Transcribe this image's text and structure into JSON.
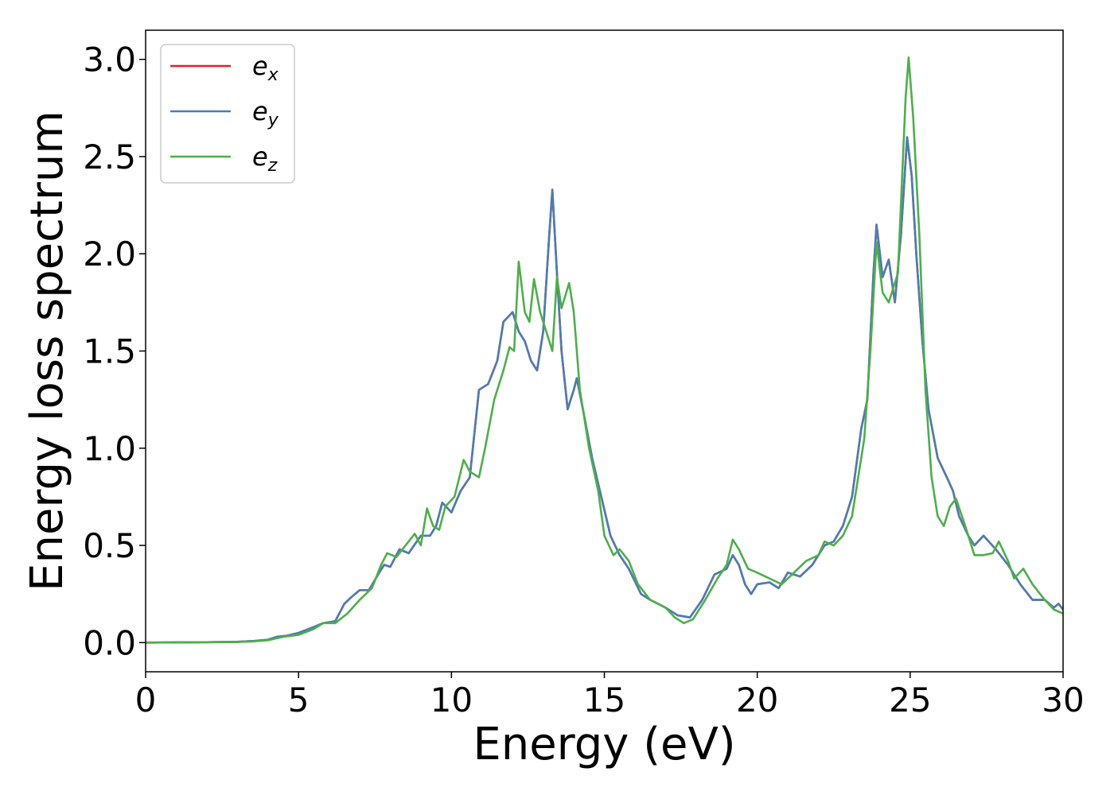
{
  "chart_data": {
    "type": "line",
    "title": "",
    "xlabel": "Energy (eV)",
    "ylabel": "Energy loss spectrum",
    "xlim": [
      0,
      30
    ],
    "ylim": [
      -0.15,
      3.15
    ],
    "xticks": [
      0,
      5,
      10,
      15,
      20,
      25,
      30
    ],
    "yticks": [
      0.0,
      0.5,
      1.0,
      1.5,
      2.0,
      2.5,
      3.0
    ],
    "xtick_labels": [
      "0",
      "5",
      "10",
      "15",
      "20",
      "25",
      "30"
    ],
    "ytick_labels": [
      "0.0",
      "0.5",
      "1.0",
      "1.5",
      "2.0",
      "2.5",
      "3.0"
    ],
    "grid": false,
    "legend_position": "top-left",
    "series": [
      {
        "name": "e_x",
        "legend_base": "e",
        "legend_sub": "x",
        "color": "#d62728",
        "points": [
          [
            0,
            0
          ],
          [
            1,
            0.001
          ],
          [
            2,
            0.002
          ],
          [
            3,
            0.004
          ],
          [
            3.5,
            0.008
          ],
          [
            4,
            0.015
          ],
          [
            4.3,
            0.03
          ],
          [
            4.6,
            0.035
          ],
          [
            5,
            0.05
          ],
          [
            5.5,
            0.08
          ],
          [
            5.8,
            0.1
          ],
          [
            6.2,
            0.11
          ],
          [
            6.5,
            0.2
          ],
          [
            6.7,
            0.23
          ],
          [
            7,
            0.27
          ],
          [
            7.3,
            0.27
          ],
          [
            7.6,
            0.35
          ],
          [
            7.8,
            0.4
          ],
          [
            8,
            0.39
          ],
          [
            8.3,
            0.48
          ],
          [
            8.6,
            0.46
          ],
          [
            9,
            0.55
          ],
          [
            9.3,
            0.55
          ],
          [
            9.5,
            0.6
          ],
          [
            9.7,
            0.72
          ],
          [
            10,
            0.67
          ],
          [
            10.3,
            0.78
          ],
          [
            10.6,
            0.85
          ],
          [
            10.9,
            1.3
          ],
          [
            11.2,
            1.33
          ],
          [
            11.5,
            1.45
          ],
          [
            11.7,
            1.65
          ],
          [
            12,
            1.7
          ],
          [
            12.2,
            1.6
          ],
          [
            12.4,
            1.55
          ],
          [
            12.6,
            1.45
          ],
          [
            12.8,
            1.4
          ],
          [
            13,
            1.6
          ],
          [
            13.2,
            2.1
          ],
          [
            13.3,
            2.33
          ],
          [
            13.45,
            1.9
          ],
          [
            13.6,
            1.5
          ],
          [
            13.8,
            1.2
          ],
          [
            14,
            1.3
          ],
          [
            14.1,
            1.36
          ],
          [
            14.3,
            1.2
          ],
          [
            14.6,
            0.95
          ],
          [
            14.9,
            0.75
          ],
          [
            15.2,
            0.55
          ],
          [
            15.5,
            0.45
          ],
          [
            15.8,
            0.38
          ],
          [
            16.2,
            0.25
          ],
          [
            16.5,
            0.22
          ],
          [
            17,
            0.18
          ],
          [
            17.4,
            0.14
          ],
          [
            17.8,
            0.13
          ],
          [
            18.2,
            0.22
          ],
          [
            18.6,
            0.35
          ],
          [
            19,
            0.38
          ],
          [
            19.2,
            0.45
          ],
          [
            19.4,
            0.4
          ],
          [
            19.6,
            0.3
          ],
          [
            19.8,
            0.25
          ],
          [
            20,
            0.3
          ],
          [
            20.4,
            0.31
          ],
          [
            20.7,
            0.28
          ],
          [
            21,
            0.36
          ],
          [
            21.4,
            0.34
          ],
          [
            21.8,
            0.4
          ],
          [
            22.2,
            0.5
          ],
          [
            22.5,
            0.52
          ],
          [
            22.8,
            0.6
          ],
          [
            23.1,
            0.75
          ],
          [
            23.4,
            1.1
          ],
          [
            23.6,
            1.25
          ],
          [
            23.8,
            1.9
          ],
          [
            23.9,
            2.15
          ],
          [
            24.1,
            1.88
          ],
          [
            24.3,
            1.97
          ],
          [
            24.5,
            1.75
          ],
          [
            24.7,
            2.1
          ],
          [
            24.9,
            2.6
          ],
          [
            25.05,
            2.4
          ],
          [
            25.2,
            2.0
          ],
          [
            25.4,
            1.55
          ],
          [
            25.6,
            1.2
          ],
          [
            25.9,
            0.95
          ],
          [
            26.2,
            0.85
          ],
          [
            26.4,
            0.78
          ],
          [
            26.6,
            0.65
          ],
          [
            26.9,
            0.55
          ],
          [
            27.1,
            0.5
          ],
          [
            27.4,
            0.55
          ],
          [
            27.8,
            0.48
          ],
          [
            28.2,
            0.4
          ],
          [
            28.6,
            0.3
          ],
          [
            29,
            0.22
          ],
          [
            29.4,
            0.22
          ],
          [
            29.7,
            0.18
          ],
          [
            29.85,
            0.2
          ],
          [
            30,
            0.17
          ]
        ]
      },
      {
        "name": "e_y",
        "legend_base": "e",
        "legend_sub": "y",
        "color": "#4a7db5",
        "points": [
          [
            0,
            0
          ],
          [
            1,
            0.001
          ],
          [
            2,
            0.002
          ],
          [
            3,
            0.004
          ],
          [
            3.5,
            0.008
          ],
          [
            4,
            0.015
          ],
          [
            4.3,
            0.03
          ],
          [
            4.6,
            0.035
          ],
          [
            5,
            0.05
          ],
          [
            5.5,
            0.08
          ],
          [
            5.8,
            0.1
          ],
          [
            6.2,
            0.11
          ],
          [
            6.5,
            0.2
          ],
          [
            6.7,
            0.23
          ],
          [
            7,
            0.27
          ],
          [
            7.3,
            0.27
          ],
          [
            7.6,
            0.35
          ],
          [
            7.8,
            0.4
          ],
          [
            8,
            0.39
          ],
          [
            8.3,
            0.48
          ],
          [
            8.6,
            0.46
          ],
          [
            9,
            0.55
          ],
          [
            9.3,
            0.55
          ],
          [
            9.5,
            0.6
          ],
          [
            9.7,
            0.72
          ],
          [
            10,
            0.67
          ],
          [
            10.3,
            0.78
          ],
          [
            10.6,
            0.85
          ],
          [
            10.9,
            1.3
          ],
          [
            11.2,
            1.33
          ],
          [
            11.5,
            1.45
          ],
          [
            11.7,
            1.65
          ],
          [
            12,
            1.7
          ],
          [
            12.2,
            1.6
          ],
          [
            12.4,
            1.55
          ],
          [
            12.6,
            1.45
          ],
          [
            12.8,
            1.4
          ],
          [
            13,
            1.6
          ],
          [
            13.2,
            2.1
          ],
          [
            13.3,
            2.33
          ],
          [
            13.45,
            1.9
          ],
          [
            13.6,
            1.5
          ],
          [
            13.8,
            1.2
          ],
          [
            14,
            1.3
          ],
          [
            14.1,
            1.36
          ],
          [
            14.3,
            1.2
          ],
          [
            14.6,
            0.95
          ],
          [
            14.9,
            0.75
          ],
          [
            15.2,
            0.55
          ],
          [
            15.5,
            0.45
          ],
          [
            15.8,
            0.38
          ],
          [
            16.2,
            0.25
          ],
          [
            16.5,
            0.22
          ],
          [
            17,
            0.18
          ],
          [
            17.4,
            0.14
          ],
          [
            17.8,
            0.13
          ],
          [
            18.2,
            0.22
          ],
          [
            18.6,
            0.35
          ],
          [
            19,
            0.38
          ],
          [
            19.2,
            0.45
          ],
          [
            19.4,
            0.4
          ],
          [
            19.6,
            0.3
          ],
          [
            19.8,
            0.25
          ],
          [
            20,
            0.3
          ],
          [
            20.4,
            0.31
          ],
          [
            20.7,
            0.28
          ],
          [
            21,
            0.36
          ],
          [
            21.4,
            0.34
          ],
          [
            21.8,
            0.4
          ],
          [
            22.2,
            0.5
          ],
          [
            22.5,
            0.52
          ],
          [
            22.8,
            0.6
          ],
          [
            23.1,
            0.75
          ],
          [
            23.4,
            1.1
          ],
          [
            23.6,
            1.25
          ],
          [
            23.8,
            1.9
          ],
          [
            23.9,
            2.15
          ],
          [
            24.1,
            1.88
          ],
          [
            24.3,
            1.97
          ],
          [
            24.5,
            1.75
          ],
          [
            24.7,
            2.1
          ],
          [
            24.9,
            2.6
          ],
          [
            25.05,
            2.4
          ],
          [
            25.2,
            2.0
          ],
          [
            25.4,
            1.55
          ],
          [
            25.6,
            1.2
          ],
          [
            25.9,
            0.95
          ],
          [
            26.2,
            0.85
          ],
          [
            26.4,
            0.78
          ],
          [
            26.6,
            0.65
          ],
          [
            26.9,
            0.55
          ],
          [
            27.1,
            0.5
          ],
          [
            27.4,
            0.55
          ],
          [
            27.8,
            0.48
          ],
          [
            28.2,
            0.4
          ],
          [
            28.6,
            0.3
          ],
          [
            29,
            0.22
          ],
          [
            29.4,
            0.22
          ],
          [
            29.7,
            0.18
          ],
          [
            29.85,
            0.2
          ],
          [
            30,
            0.17
          ]
        ]
      },
      {
        "name": "e_z",
        "legend_base": "e",
        "legend_sub": "z",
        "color": "#4daf4a",
        "points": [
          [
            0,
            0
          ],
          [
            1,
            0.001
          ],
          [
            2,
            0.002
          ],
          [
            3,
            0.003
          ],
          [
            3.5,
            0.006
          ],
          [
            4,
            0.012
          ],
          [
            4.5,
            0.03
          ],
          [
            5,
            0.04
          ],
          [
            5.5,
            0.07
          ],
          [
            5.8,
            0.1
          ],
          [
            6.2,
            0.1
          ],
          [
            6.6,
            0.15
          ],
          [
            7,
            0.22
          ],
          [
            7.4,
            0.28
          ],
          [
            7.7,
            0.4
          ],
          [
            7.9,
            0.46
          ],
          [
            8.2,
            0.44
          ],
          [
            8.5,
            0.5
          ],
          [
            8.8,
            0.56
          ],
          [
            9,
            0.5
          ],
          [
            9.2,
            0.69
          ],
          [
            9.4,
            0.6
          ],
          [
            9.6,
            0.58
          ],
          [
            9.8,
            0.7
          ],
          [
            10.1,
            0.75
          ],
          [
            10.4,
            0.94
          ],
          [
            10.6,
            0.88
          ],
          [
            10.9,
            0.85
          ],
          [
            11.1,
            1.0
          ],
          [
            11.4,
            1.25
          ],
          [
            11.7,
            1.4
          ],
          [
            11.9,
            1.52
          ],
          [
            12.05,
            1.5
          ],
          [
            12.2,
            1.96
          ],
          [
            12.4,
            1.7
          ],
          [
            12.55,
            1.65
          ],
          [
            12.7,
            1.87
          ],
          [
            12.9,
            1.7
          ],
          [
            13.1,
            1.6
          ],
          [
            13.3,
            1.5
          ],
          [
            13.45,
            1.88
          ],
          [
            13.6,
            1.72
          ],
          [
            13.85,
            1.85
          ],
          [
            14,
            1.7
          ],
          [
            14.2,
            1.3
          ],
          [
            14.5,
            1.0
          ],
          [
            14.8,
            0.78
          ],
          [
            15,
            0.55
          ],
          [
            15.3,
            0.45
          ],
          [
            15.5,
            0.48
          ],
          [
            15.8,
            0.42
          ],
          [
            16.1,
            0.3
          ],
          [
            16.5,
            0.22
          ],
          [
            17,
            0.18
          ],
          [
            17.3,
            0.13
          ],
          [
            17.6,
            0.1
          ],
          [
            17.9,
            0.12
          ],
          [
            18.3,
            0.22
          ],
          [
            18.7,
            0.33
          ],
          [
            19,
            0.4
          ],
          [
            19.2,
            0.53
          ],
          [
            19.4,
            0.48
          ],
          [
            19.7,
            0.38
          ],
          [
            20,
            0.36
          ],
          [
            20.4,
            0.33
          ],
          [
            20.8,
            0.3
          ],
          [
            21.2,
            0.36
          ],
          [
            21.6,
            0.42
          ],
          [
            22,
            0.45
          ],
          [
            22.2,
            0.52
          ],
          [
            22.5,
            0.5
          ],
          [
            22.8,
            0.55
          ],
          [
            23.1,
            0.65
          ],
          [
            23.3,
            0.85
          ],
          [
            23.5,
            1.05
          ],
          [
            23.7,
            1.5
          ],
          [
            23.9,
            2.06
          ],
          [
            24.1,
            1.8
          ],
          [
            24.3,
            1.75
          ],
          [
            24.6,
            1.9
          ],
          [
            24.85,
            2.8
          ],
          [
            24.95,
            3.01
          ],
          [
            25.1,
            2.7
          ],
          [
            25.3,
            2.1
          ],
          [
            25.5,
            1.3
          ],
          [
            25.7,
            0.85
          ],
          [
            25.9,
            0.65
          ],
          [
            26.1,
            0.6
          ],
          [
            26.3,
            0.7
          ],
          [
            26.5,
            0.74
          ],
          [
            26.8,
            0.6
          ],
          [
            27.1,
            0.45
          ],
          [
            27.4,
            0.45
          ],
          [
            27.7,
            0.46
          ],
          [
            27.9,
            0.52
          ],
          [
            28.2,
            0.42
          ],
          [
            28.4,
            0.33
          ],
          [
            28.7,
            0.38
          ],
          [
            29,
            0.3
          ],
          [
            29.4,
            0.22
          ],
          [
            29.7,
            0.17
          ],
          [
            30,
            0.15
          ]
        ]
      }
    ]
  }
}
